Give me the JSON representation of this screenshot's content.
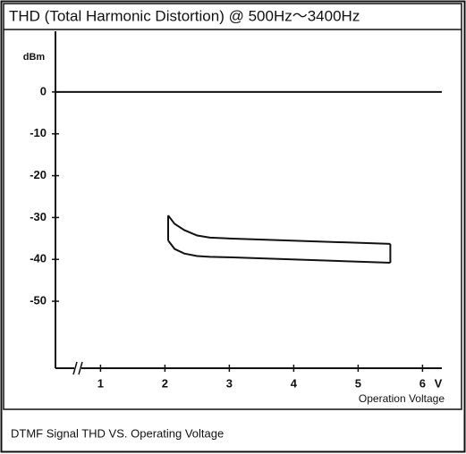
{
  "chart_data": {
    "type": "line",
    "title": "THD (Total Harmonic Distortion) @ 500Hz～3400Hz",
    "y_label": "dBm",
    "x_unit": "V",
    "x_label": "Operation Voltage",
    "caption": "DTMF Signal THD VS. Operating Voltage",
    "x": [
      2.05,
      2.15,
      2.3,
      2.5,
      2.7,
      3,
      5.5
    ],
    "series": [
      {
        "color": "#111111",
        "values": [
          -29.5,
          -31.5,
          -33,
          -34.3,
          -34.8,
          -35,
          -36.3
        ]
      },
      {
        "color": "#111111",
        "values": [
          -35.5,
          -37.5,
          -38.6,
          -39.2,
          -39.4,
          -39.5,
          -40.8
        ]
      }
    ],
    "xlim": [
      0.3,
      6.3
    ],
    "ylim": [
      -66,
      14.5
    ],
    "xticks": [
      1,
      2,
      3,
      4,
      5,
      6
    ],
    "yticks": [
      0,
      -10,
      -20,
      -30,
      -40,
      -50
    ],
    "reference_line": 0
  }
}
